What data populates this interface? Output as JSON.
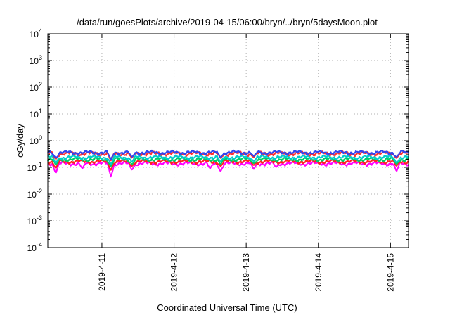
{
  "chart_data": {
    "type": "line",
    "title": "/data/run/goesPlots/archive/2019-04-15/06:00/bryn/../bryn/5daysMoon.plot",
    "xlabel": "Coordinated Universal Time (UTC)",
    "ylabel": "cGy/day",
    "yscale": "log",
    "ylim": [
      0.0001,
      10000
    ],
    "xlim": [
      "2019-04-10T06:00",
      "2019-04-15T06:00"
    ],
    "grid": true,
    "legend": "none",
    "y_ticks": [
      {
        "base": "10",
        "exp": "-4",
        "value": 0.0001
      },
      {
        "base": "10",
        "exp": "-3",
        "value": 0.001
      },
      {
        "base": "10",
        "exp": "-2",
        "value": 0.01
      },
      {
        "base": "10",
        "exp": "-1",
        "value": 0.1
      },
      {
        "base": "10",
        "exp": "0",
        "value": 1
      },
      {
        "base": "10",
        "exp": "1",
        "value": 10
      },
      {
        "base": "10",
        "exp": "2",
        "value": 100
      },
      {
        "base": "10",
        "exp": "3",
        "value": 1000
      },
      {
        "base": "10",
        "exp": "4",
        "value": 10000
      }
    ],
    "x_ticks": [
      "2019-4-11",
      "2019-4-12",
      "2019-4-13",
      "2019-4-14",
      "2019-4-15"
    ],
    "x_tick_dates": [
      "2019-04-11T00:00",
      "2019-04-12T00:00",
      "2019-04-13T00:00",
      "2019-04-14T00:00",
      "2019-04-15T00:00"
    ],
    "series": [
      {
        "color": "#ff00ff",
        "level": 0.14,
        "dips": [
          [
            "2019-04-10T08:40",
            0.06
          ],
          [
            "2019-04-10T17:30",
            0.09
          ],
          [
            "2019-04-11T03:00",
            0.045
          ],
          [
            "2019-04-11T10:00",
            0.08
          ],
          [
            "2019-04-12T12:00",
            0.09
          ],
          [
            "2019-04-12T15:30",
            0.07
          ],
          [
            "2019-04-13T02:30",
            0.085
          ],
          [
            "2019-04-13T10:00",
            0.1
          ],
          [
            "2019-04-15T02:00",
            0.07
          ]
        ]
      },
      {
        "color": "#ff2020",
        "level": 0.165,
        "dips": [
          [
            "2019-04-10T08:40",
            0.09
          ],
          [
            "2019-04-11T03:00",
            0.08
          ],
          [
            "2019-04-11T10:00",
            0.11
          ],
          [
            "2019-04-12T15:30",
            0.11
          ],
          [
            "2019-04-13T02:30",
            0.12
          ],
          [
            "2019-04-15T02:00",
            0.11
          ]
        ]
      },
      {
        "color": "#00cc66",
        "level": 0.2,
        "dips": [
          [
            "2019-04-10T08:40",
            0.12
          ],
          [
            "2019-04-11T03:00",
            0.11
          ],
          [
            "2019-04-11T10:00",
            0.13
          ],
          [
            "2019-04-12T15:30",
            0.13
          ],
          [
            "2019-04-13T02:30",
            0.14
          ],
          [
            "2019-04-15T02:00",
            0.13
          ]
        ]
      },
      {
        "color": "#00cccc",
        "level": 0.24,
        "dips": [
          [
            "2019-04-10T08:40",
            0.14
          ],
          [
            "2019-04-11T03:00",
            0.13
          ],
          [
            "2019-04-11T10:00",
            0.16
          ],
          [
            "2019-04-12T15:30",
            0.16
          ],
          [
            "2019-04-13T02:30",
            0.17
          ],
          [
            "2019-04-15T02:00",
            0.15
          ]
        ]
      },
      {
        "color": "#ff3030",
        "level": 0.33,
        "dips": [
          [
            "2019-04-10T08:40",
            0.2
          ],
          [
            "2019-04-11T03:00",
            0.18
          ],
          [
            "2019-04-11T10:00",
            0.22
          ],
          [
            "2019-04-12T15:30",
            0.22
          ],
          [
            "2019-04-13T02:30",
            0.24
          ],
          [
            "2019-04-15T02:00",
            0.22
          ]
        ]
      },
      {
        "color": "#3344ee",
        "level": 0.36,
        "dips": [
          [
            "2019-04-10T08:40",
            0.22
          ],
          [
            "2019-04-11T03:00",
            0.2
          ],
          [
            "2019-04-11T10:00",
            0.24
          ],
          [
            "2019-04-12T15:30",
            0.24
          ],
          [
            "2019-04-13T02:30",
            0.26
          ],
          [
            "2019-04-15T02:00",
            0.24
          ]
        ]
      }
    ]
  }
}
